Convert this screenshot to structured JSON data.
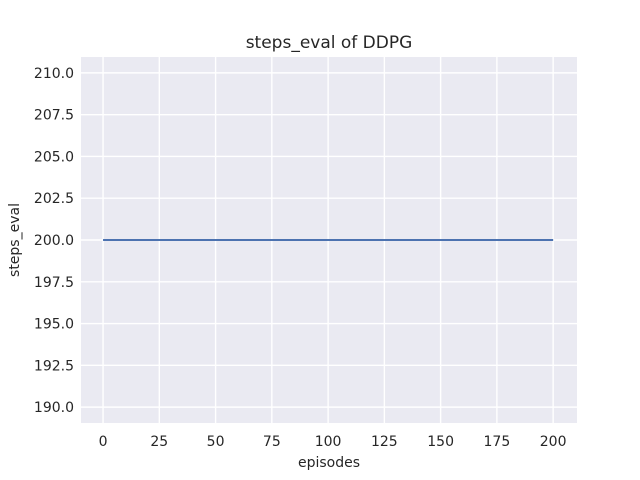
{
  "chart_data": {
    "type": "line",
    "title": "steps_eval of DDPG",
    "xlabel": "episodes",
    "ylabel": "steps_eval",
    "series": [
      {
        "name": "steps_eval",
        "color": "#4c72b0",
        "x": [
          0,
          200
        ],
        "y": [
          200,
          200
        ]
      }
    ],
    "xlim": [
      -9.8,
      210.6
    ],
    "ylim": [
      189.05,
      210.95
    ],
    "xticks": [
      "0",
      "25",
      "50",
      "75",
      "100",
      "125",
      "150",
      "175",
      "200"
    ],
    "yticks": [
      "190.0",
      "192.5",
      "195.0",
      "197.5",
      "200.0",
      "202.5",
      "205.0",
      "207.5",
      "210.0"
    ],
    "grid": true,
    "legend": "none",
    "style": "seaborn-darkgrid",
    "plot_background": "#eaeaf2",
    "grid_color": "#ffffff",
    "line_width": 2,
    "tick_color": "#262626",
    "tick_font_size": 14
  }
}
